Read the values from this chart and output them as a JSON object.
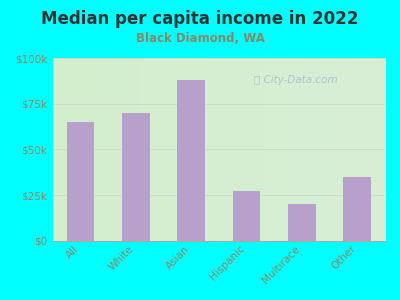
{
  "title": "Median per capita income in 2022",
  "subtitle": "Black Diamond, WA",
  "categories": [
    "All",
    "White",
    "Asian",
    "Hispanic",
    "Multirace",
    "Other"
  ],
  "values": [
    65000,
    70000,
    88000,
    27000,
    20000,
    35000
  ],
  "bar_color": "#b8a0cc",
  "background_outer": "#00ffff",
  "title_color": "#333333",
  "subtitle_color": "#888866",
  "ytick_label_color": "#888866",
  "xtick_label_color": "#888866",
  "ylim": [
    0,
    100000
  ],
  "yticks": [
    0,
    25000,
    50000,
    75000,
    100000
  ],
  "watermark": "City-Data.com",
  "watermark_color": "#aabbcc",
  "grid_color": "#ccddcc"
}
